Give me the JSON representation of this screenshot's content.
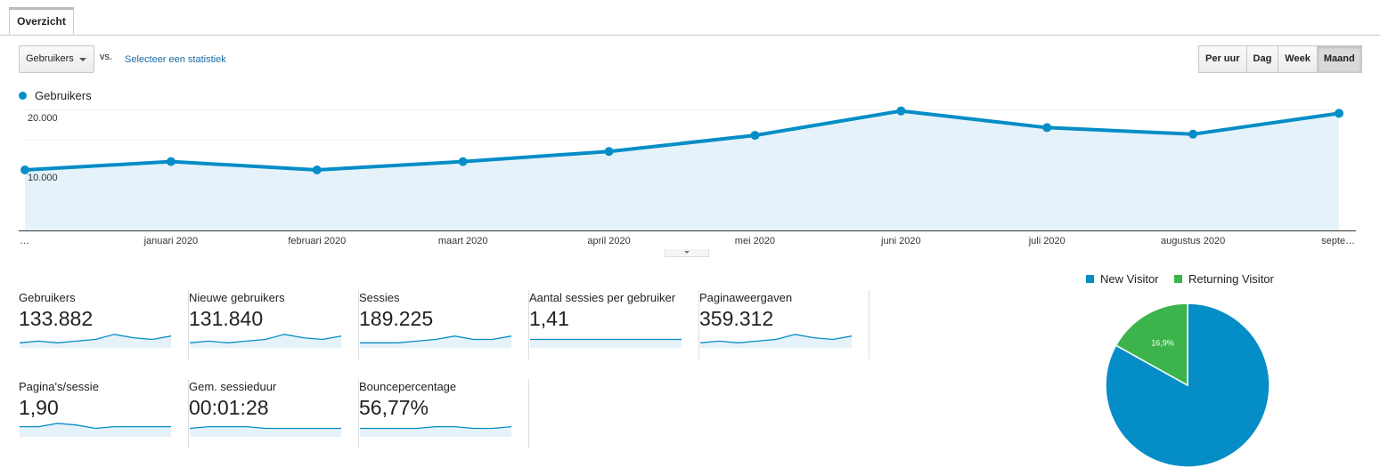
{
  "tab": {
    "label": "Overzicht"
  },
  "controls": {
    "metric_dropdown": "Gebruikers",
    "vs": "vs.",
    "select_metric": "Selecteer een statistiek",
    "periods": [
      "Per uur",
      "Dag",
      "Week",
      "Maand"
    ],
    "active_period": "Maand"
  },
  "chart_data": {
    "type": "area",
    "legend": "Gebruikers",
    "color": "#058dc7",
    "x_labels": [
      "…",
      "januari 2020",
      "februari 2020",
      "maart 2020",
      "april 2020",
      "mei 2020",
      "juni 2020",
      "juli 2020",
      "augustus 2020",
      "septe…"
    ],
    "values": [
      10000,
      11400,
      10000,
      11400,
      13100,
      15800,
      19900,
      17100,
      16000,
      19500
    ],
    "y_ticks": [
      "20.000",
      "10.000"
    ],
    "ylim": [
      0,
      20000
    ],
    "grid": true
  },
  "metrics": [
    {
      "label": "Gebruikers",
      "value": "133.882",
      "spark": [
        3,
        4,
        3,
        4,
        5,
        8,
        6,
        5,
        7
      ]
    },
    {
      "label": "Nieuwe gebruikers",
      "value": "131.840",
      "spark": [
        3,
        4,
        3,
        4,
        5,
        8,
        6,
        5,
        7
      ]
    },
    {
      "label": "Sessies",
      "value": "189.225",
      "spark": [
        3,
        3,
        3,
        4,
        5,
        7,
        5,
        5,
        7
      ]
    },
    {
      "label": "Aantal sessies per gebruiker",
      "value": "1,41",
      "spark": [
        5,
        5,
        5,
        5,
        5,
        5,
        5,
        5,
        5
      ]
    },
    {
      "label": "Paginaweergaven",
      "value": "359.312",
      "spark": [
        3,
        4,
        3,
        4,
        5,
        8,
        6,
        5,
        7
      ]
    },
    {
      "label": "Pagina's/sessie",
      "value": "1,90",
      "spark": [
        6,
        6,
        8,
        7,
        5,
        6,
        6,
        6,
        6
      ]
    },
    {
      "label": "Gem. sessieduur",
      "value": "00:01:28",
      "spark": [
        5,
        6,
        6,
        6,
        5,
        5,
        5,
        5,
        5
      ]
    },
    {
      "label": "Bouncepercentage",
      "value": "56,77%",
      "spark": [
        5,
        5,
        5,
        5,
        6,
        6,
        5,
        5,
        6
      ]
    }
  ],
  "pie": {
    "legend": [
      {
        "name": "New Visitor",
        "color": "#058dc7"
      },
      {
        "name": "Returning Visitor",
        "color": "#3cb44b"
      }
    ],
    "slices": [
      {
        "name": "New Visitor",
        "value": 83.1,
        "label": "83,1%",
        "color": "#058dc7"
      },
      {
        "name": "Returning Visitor",
        "value": 16.9,
        "label": "16,9%",
        "color": "#3cb44b"
      }
    ]
  }
}
